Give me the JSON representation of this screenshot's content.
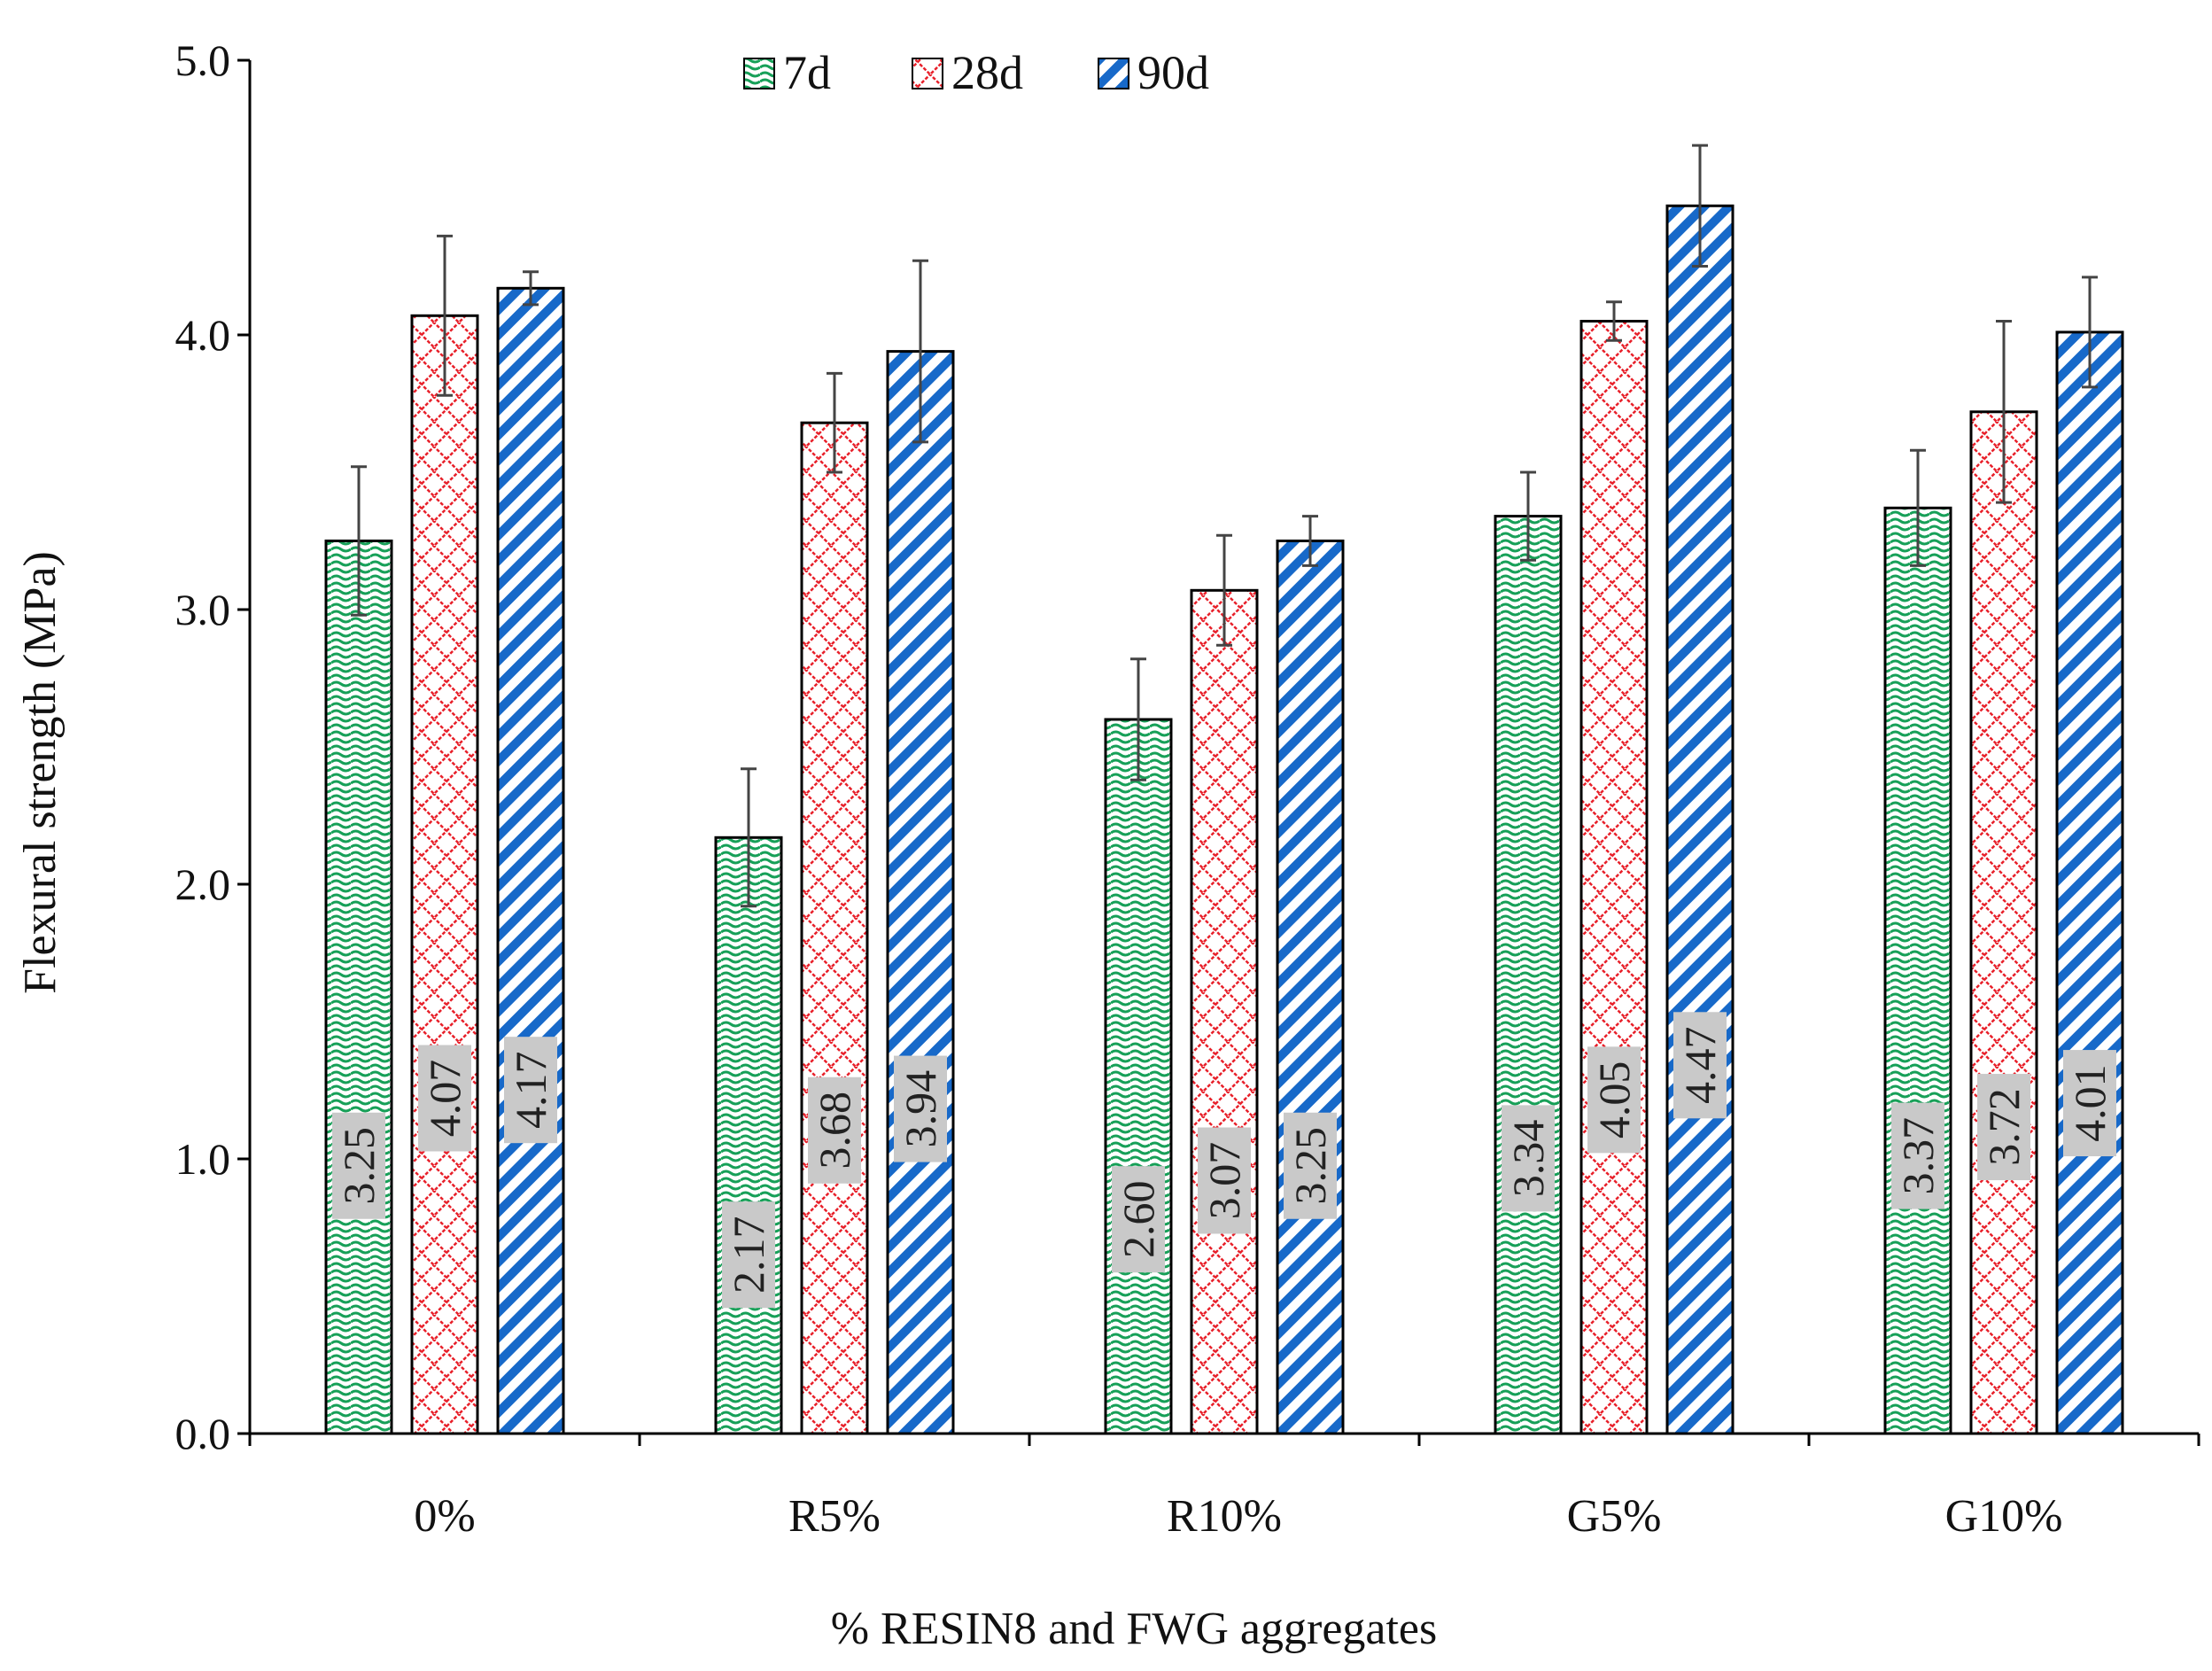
{
  "chart_data": {
    "type": "bar",
    "title": "",
    "xlabel": "% RESIN8 and FWG aggregates",
    "ylabel": "Flexural strength (MPa)",
    "ylim": [
      0,
      5
    ],
    "yticks": [
      "0.0",
      "1.0",
      "2.0",
      "3.0",
      "4.0",
      "5.0"
    ],
    "categories": [
      "0%",
      "R5%",
      "R10%",
      "G5%",
      "G10%"
    ],
    "legend_position": "top-center",
    "series": [
      {
        "name": "7d",
        "color": "#17a058",
        "values": [
          3.25,
          2.17,
          2.6,
          3.34,
          3.37
        ],
        "labels": [
          "3.25",
          "2.17",
          "2.60",
          "3.34",
          "3.37"
        ],
        "errors": [
          0.27,
          0.25,
          0.22,
          0.16,
          0.21
        ]
      },
      {
        "name": "28d",
        "color": "#e8202a",
        "values": [
          4.07,
          3.68,
          3.07,
          4.05,
          3.72
        ],
        "labels": [
          "4.07",
          "3.68",
          "3.07",
          "4.05",
          "3.72"
        ],
        "errors": [
          0.29,
          0.18,
          0.2,
          0.07,
          0.33
        ]
      },
      {
        "name": "90d",
        "color": "#1769c9",
        "values": [
          4.17,
          3.94,
          3.25,
          4.47,
          4.01
        ],
        "labels": [
          "4.17",
          "3.94",
          "3.25",
          "4.47",
          "4.01"
        ],
        "errors": [
          0.06,
          0.33,
          0.09,
          0.22,
          0.2
        ]
      }
    ]
  }
}
